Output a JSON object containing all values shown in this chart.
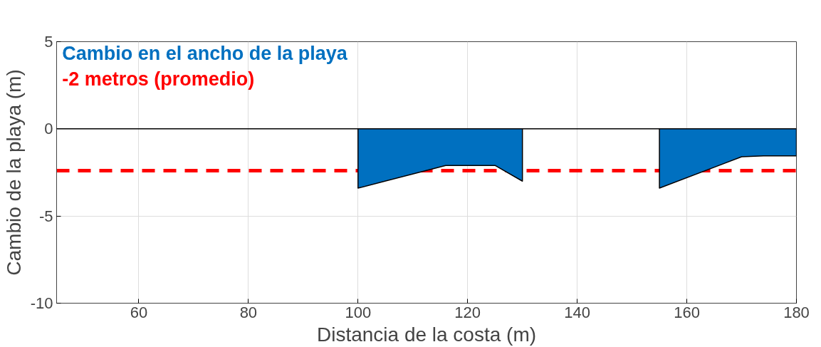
{
  "chart_data": {
    "type": "area",
    "xlabel": "Distancia de la costa (m)",
    "ylabel": "Cambio de la playa (m)",
    "x": [
      100,
      116,
      125,
      130,
      142,
      155,
      170,
      174,
      180
    ],
    "series": [
      {
        "name": "Cambio en el ancho de la playa",
        "color": "#0070c0",
        "values": [
          -3.4,
          -2.1,
          -2.1,
          -3.0,
          null,
          -3.4,
          -1.6,
          -1.55,
          -1.55
        ]
      }
    ],
    "xlim": [
      45,
      180
    ],
    "xticks": [
      60,
      80,
      100,
      120,
      140,
      160,
      180
    ],
    "ylim": [
      -10,
      5
    ],
    "yticks": [
      -10,
      -5,
      0,
      5
    ],
    "ref_lines": [
      {
        "axis": "y",
        "value": 0,
        "color": "#000000",
        "line_style": "solid"
      },
      {
        "axis": "y",
        "value": -2.4,
        "label": "-2 metros (promedio)",
        "color": "#ff0000",
        "line_style": "dashed"
      }
    ],
    "grid": true,
    "legend": "top left"
  }
}
